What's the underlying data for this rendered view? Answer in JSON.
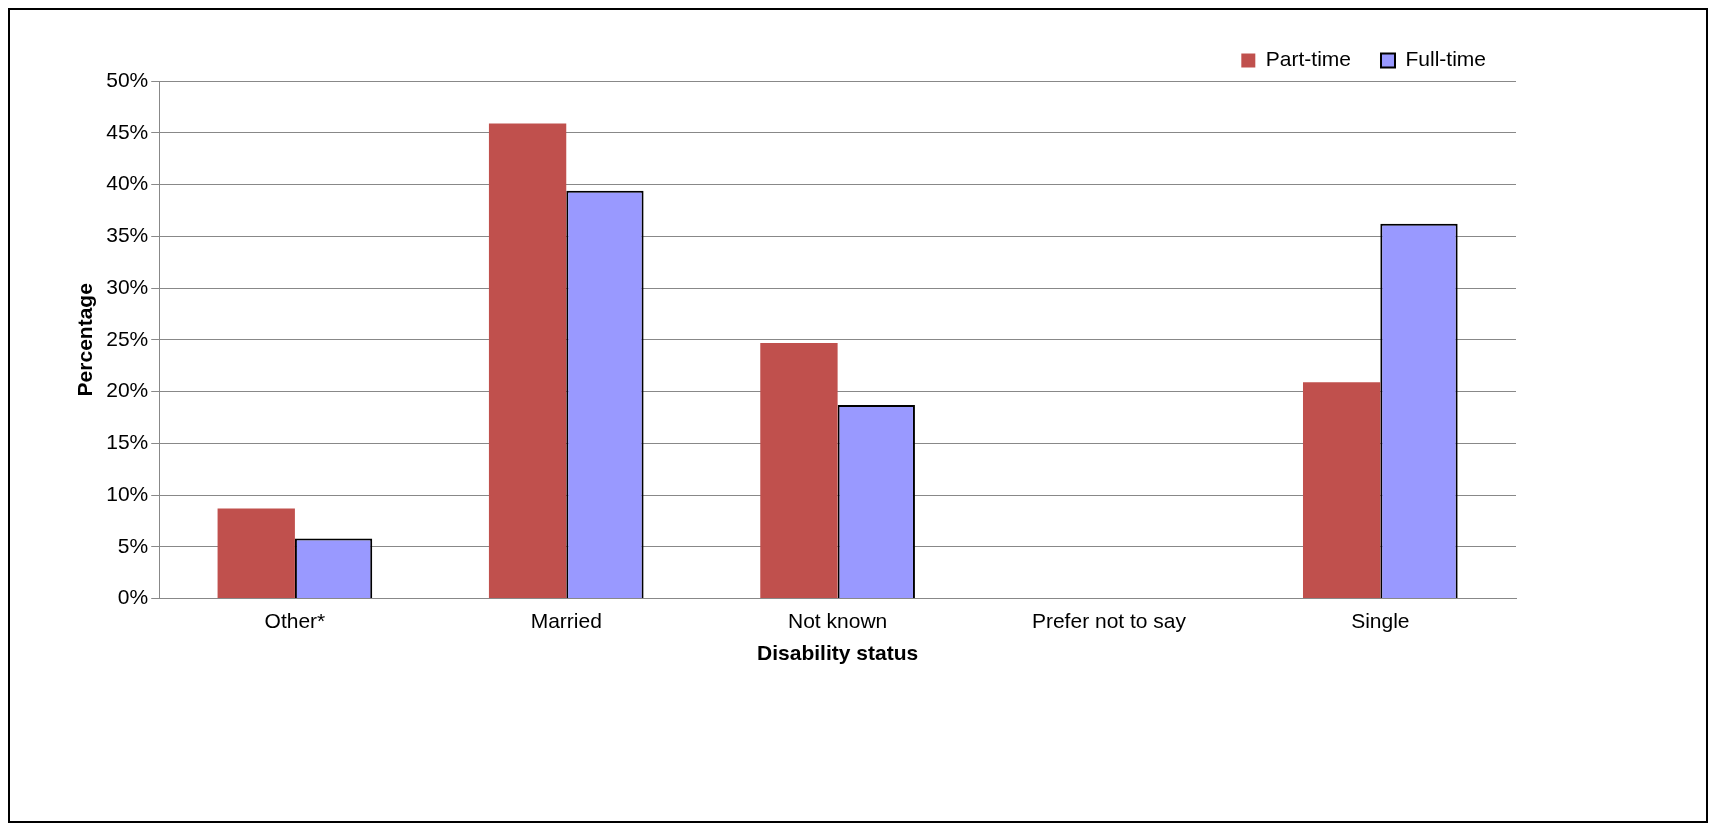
{
  "chart_data": {
    "type": "bar",
    "xlabel": "Disability status",
    "ylabel": "Percentage",
    "categories": [
      "Other*",
      "Married",
      "Not known",
      "Prefer not to say",
      "Single"
    ],
    "series": [
      {
        "name": "Part-time",
        "color": "#c0504d",
        "values": [
          8.7,
          45.9,
          24.7,
          0,
          20.9
        ]
      },
      {
        "name": "Full-time",
        "color": "#9999ff",
        "values": [
          5.8,
          39.4,
          18.7,
          0,
          36.2
        ]
      }
    ],
    "ylim": [
      0,
      50
    ],
    "yticks": [
      {
        "value": 0,
        "label": "0%"
      },
      {
        "value": 5,
        "label": "5%"
      },
      {
        "value": 10,
        "label": "10%"
      },
      {
        "value": 15,
        "label": "15%"
      },
      {
        "value": 20,
        "label": "20%"
      },
      {
        "value": 25,
        "label": "25%"
      },
      {
        "value": 30,
        "label": "30%"
      },
      {
        "value": 35,
        "label": "35%"
      },
      {
        "value": 40,
        "label": "40%"
      },
      {
        "value": 45,
        "label": "45%"
      },
      {
        "value": 50,
        "label": "50%"
      }
    ],
    "grid": "y",
    "legend": "top right"
  }
}
